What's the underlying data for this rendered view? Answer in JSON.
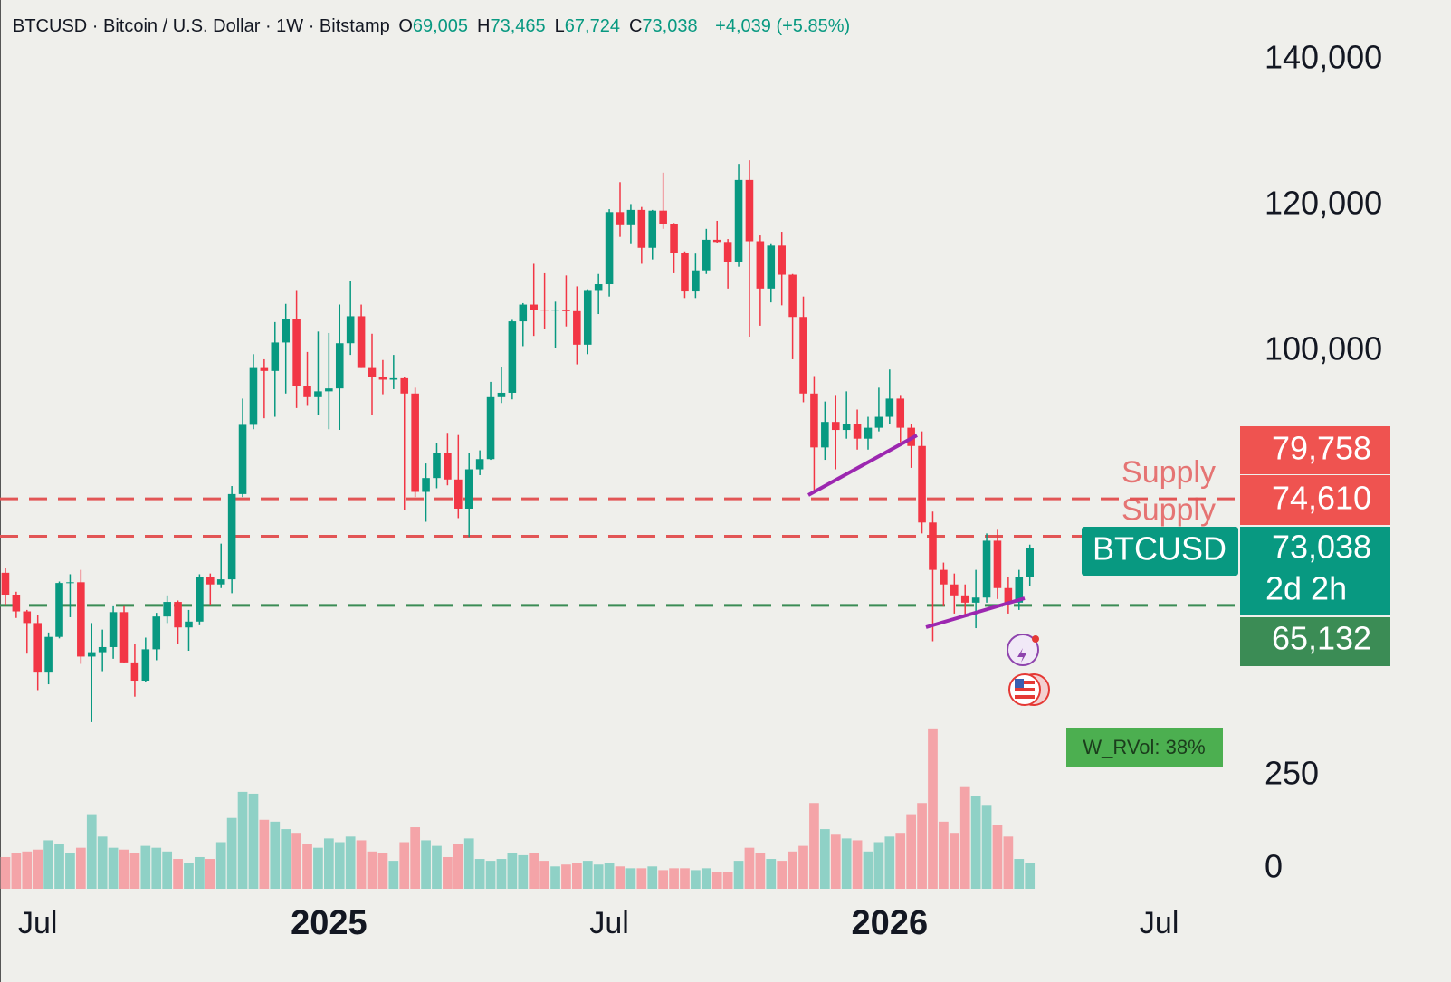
{
  "chart_data": {
    "type": "candlestick",
    "title": "BTCUSD · Bitcoin / U.S. Dollar · 1W · Bitstamp",
    "ohlc_legend": [
      {
        "key": "O",
        "value": "69,005"
      },
      {
        "key": "H",
        "value": "73,465"
      },
      {
        "key": "L",
        "value": "67,724"
      },
      {
        "key": "C",
        "value": "73,038"
      }
    ],
    "change": "+4,039 (+5.85%)",
    "categories": [
      null,
      null,
      null,
      "Jul",
      null,
      null,
      null,
      null,
      null,
      null,
      null,
      null,
      null,
      null,
      null,
      null,
      null,
      null,
      null,
      null,
      null,
      null,
      null,
      null,
      null,
      null,
      null,
      null,
      null,
      null,
      "2025",
      null,
      null,
      null,
      null,
      null,
      null,
      null,
      null,
      null,
      null,
      null,
      null,
      null,
      null,
      null,
      null,
      null,
      null,
      null,
      null,
      null,
      null,
      null,
      null,
      null,
      "Jul",
      null,
      null,
      null,
      null,
      null,
      null,
      null,
      null,
      null,
      null,
      null,
      null,
      null,
      null,
      null,
      null,
      null,
      null,
      null,
      null,
      null,
      null,
      null,
      null,
      null,
      "2026",
      null,
      null,
      null,
      null,
      null,
      null,
      null,
      null,
      null,
      null,
      null,
      null,
      null,
      null,
      null,
      null,
      null,
      null,
      null,
      null,
      null,
      null,
      null,
      null,
      "Jul",
      null,
      null,
      null,
      null,
      null,
      null,
      null
    ],
    "open": [
      69600,
      66600,
      64300,
      62700,
      55900,
      60800,
      68200,
      68300,
      58100,
      58700,
      59400,
      64200,
      57300,
      54800,
      59100,
      63600,
      65600,
      62100,
      62900,
      69000,
      68000,
      68700,
      80400,
      89900,
      97700,
      97300,
      101200,
      104400,
      95200,
      93700,
      94500,
      94900,
      101100,
      104800,
      97700,
      96500,
      96100,
      96300,
      94200,
      80700,
      82600,
      86100,
      82400,
      78400,
      83800,
      85200,
      93700,
      94300,
      104100,
      106400,
      105700,
      105600,
      105700,
      105500,
      100900,
      108400,
      109200,
      119100,
      117300,
      119400,
      114200,
      119300,
      117400,
      113500,
      108200,
      111100,
      115300,
      115000,
      112200,
      123500,
      115100,
      108600,
      114500,
      110500,
      104700,
      94200,
      86800,
      90300,
      89200,
      90000,
      88000,
      89500,
      91000,
      93500,
      89500,
      87000,
      76500,
      70000,
      68000,
      66500,
      65500,
      66200,
      74000,
      67500,
      65500,
      69005,
      null,
      null,
      null,
      null,
      null,
      null,
      null,
      null,
      null,
      null,
      null,
      null,
      null,
      null,
      null,
      null,
      null,
      null,
      null
    ],
    "high": [
      70200,
      67000,
      64500,
      63800,
      61400,
      68400,
      69400,
      70000,
      62700,
      61800,
      65000,
      65000,
      59800,
      60700,
      64100,
      66500,
      65800,
      64500,
      69400,
      69500,
      73600,
      81500,
      93500,
      99600,
      98900,
      104000,
      106500,
      108400,
      99900,
      102700,
      102500,
      106400,
      109600,
      106400,
      102400,
      98800,
      99500,
      96500,
      95000,
      84600,
      87400,
      88800,
      88500,
      86100,
      86400,
      95800,
      97900,
      104300,
      106600,
      112000,
      110700,
      106800,
      110400,
      108900,
      108500,
      110600,
      119500,
      123200,
      120200,
      119800,
      119400,
      124500,
      117600,
      113700,
      113400,
      116800,
      117900,
      115400,
      125700,
      126200,
      115900,
      114700,
      116400,
      110600,
      107500,
      96600,
      93100,
      94000,
      94500,
      92000,
      91000,
      95000,
      97500,
      94000,
      90000,
      89000,
      78000,
      71000,
      69500,
      68000,
      70000,
      75000,
      75500,
      69000,
      70000,
      73465,
      null,
      null,
      null,
      null,
      null,
      null,
      null,
      null,
      null,
      null,
      null,
      null,
      null,
      null,
      null,
      null,
      null,
      null,
      null
    ],
    "low": [
      65100,
      63400,
      58500,
      53500,
      54300,
      60600,
      63500,
      57100,
      49100,
      56100,
      57800,
      57200,
      52600,
      54600,
      57600,
      62700,
      59800,
      58900,
      62400,
      65100,
      67500,
      66800,
      80000,
      89300,
      90800,
      91000,
      94200,
      92200,
      92500,
      91200,
      89300,
      89200,
      99500,
      97700,
      91200,
      94100,
      94800,
      78200,
      80000,
      76600,
      81200,
      81600,
      77100,
      74500,
      83000,
      85100,
      92900,
      93400,
      100700,
      102100,
      103100,
      100400,
      103400,
      98200,
      99600,
      105100,
      107500,
      115700,
      114700,
      112000,
      112600,
      116800,
      110700,
      107300,
      107300,
      110600,
      114800,
      108600,
      111600,
      102000,
      103500,
      106700,
      106300,
      98900,
      93000,
      80600,
      85100,
      83800,
      88000,
      86500,
      86500,
      89000,
      90000,
      87500,
      84000,
      75000,
      60200,
      65000,
      64000,
      63500,
      62000,
      65500,
      66000,
      64000,
      64500,
      67724,
      null,
      null,
      null,
      null,
      null,
      null,
      null,
      null,
      null,
      null,
      null,
      null,
      null,
      null,
      null,
      null,
      null,
      null,
      null
    ],
    "close": [
      66600,
      64300,
      62700,
      55900,
      60800,
      68200,
      68300,
      58100,
      58700,
      59400,
      64200,
      57300,
      54800,
      59100,
      63600,
      65600,
      62100,
      62900,
      69000,
      68000,
      68700,
      80400,
      89900,
      97700,
      97300,
      101200,
      104400,
      95200,
      93700,
      94500,
      94900,
      101100,
      104800,
      97700,
      96500,
      96100,
      96300,
      94200,
      80700,
      82600,
      86100,
      82400,
      78400,
      83800,
      85200,
      93700,
      94300,
      104100,
      106400,
      105700,
      105600,
      105700,
      105500,
      100900,
      108400,
      109200,
      119100,
      117300,
      119400,
      114200,
      119300,
      117400,
      113500,
      108200,
      111100,
      115300,
      115000,
      112200,
      123500,
      115100,
      108600,
      114500,
      110500,
      104700,
      94200,
      86800,
      90300,
      89200,
      90000,
      88000,
      89500,
      91000,
      93500,
      89500,
      87000,
      76500,
      70000,
      68000,
      66500,
      65500,
      66200,
      74000,
      67500,
      65500,
      69005,
      73038,
      null,
      null,
      null,
      null,
      null,
      null,
      null,
      null,
      null,
      null,
      null,
      null,
      null,
      null,
      null,
      null,
      null,
      null,
      null
    ],
    "up_color": "#089981",
    "down_color": "#f23645",
    "ylim": [
      24000,
      148200
    ],
    "yticks": [
      {
        "value": 100000,
        "label": "100,000"
      },
      {
        "value": 120000,
        "label": "120,000"
      },
      {
        "value": 140000,
        "label": "140,000"
      }
    ],
    "volume": {
      "values": [
        85,
        95,
        100,
        105,
        130,
        120,
        95,
        110,
        200,
        140,
        110,
        105,
        95,
        115,
        110,
        100,
        80,
        70,
        85,
        80,
        125,
        190,
        260,
        255,
        185,
        180,
        160,
        150,
        120,
        110,
        135,
        125,
        140,
        130,
        100,
        95,
        75,
        125,
        165,
        130,
        115,
        85,
        120,
        135,
        80,
        75,
        80,
        95,
        90,
        95,
        75,
        60,
        65,
        70,
        75,
        65,
        70,
        60,
        55,
        55,
        60,
        50,
        55,
        55,
        50,
        55,
        45,
        45,
        75,
        110,
        95,
        80,
        75,
        100,
        115,
        230,
        160,
        145,
        135,
        130,
        100,
        125,
        140,
        150,
        200,
        230,
        430,
        180,
        150,
        275,
        250,
        225,
        170,
        140,
        80,
        70,
        null,
        null,
        null,
        null,
        null,
        null,
        null,
        null,
        null,
        null,
        null,
        null,
        null,
        null,
        null,
        null,
        null,
        null,
        null
      ],
      "ylim": [
        0,
        1000
      ],
      "yticks": [
        0,
        250
      ],
      "up_color": "#8fd1c6",
      "down_color": "#f4a4a8"
    },
    "levels": [
      {
        "name": "Supply",
        "value": 79758,
        "label": "79,758",
        "color": "#e25555"
      },
      {
        "name": "Supply",
        "value": 74610,
        "label": "74,610",
        "color": "#e25555"
      },
      {
        "value": 65132,
        "label": "65,132",
        "color": "#3b8c55"
      }
    ],
    "last_price": {
      "symbol": "BTCUSD",
      "value": 73038,
      "label": "73,038",
      "countdown": "2d 2h"
    },
    "indicator": "W_RVol: 38%"
  }
}
